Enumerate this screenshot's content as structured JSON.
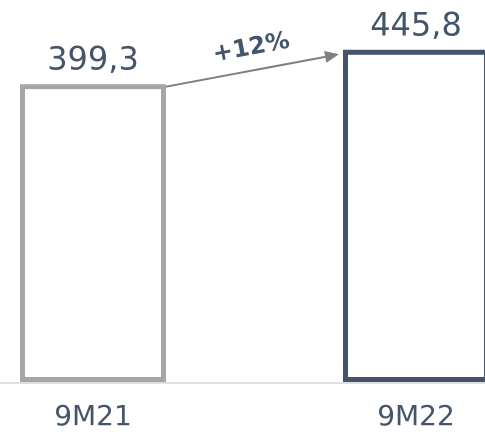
{
  "chart_data": {
    "type": "bar",
    "categories": [
      "9M21",
      "9M22"
    ],
    "values": [
      399.3,
      445.8
    ],
    "value_labels": [
      "399,3",
      "445,8"
    ],
    "growth_label": "+12%",
    "title": "",
    "xlabel": "",
    "ylabel": "",
    "grid": false,
    "legend": "none",
    "colors": {
      "bar_9M21": "#a6a6a6",
      "bar_9M22": "#44546a",
      "arrow": "#7f7f7f",
      "text": "#44546a",
      "baseline": "#bfbfbf",
      "background": "#ffffff"
    }
  }
}
